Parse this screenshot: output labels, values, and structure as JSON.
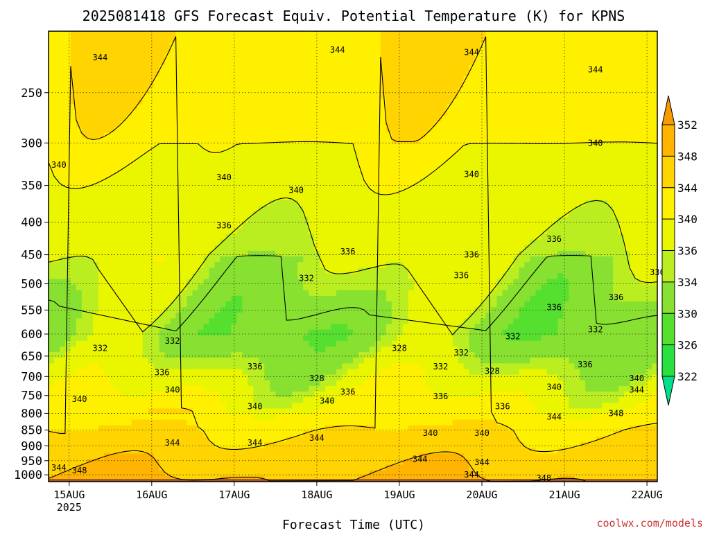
{
  "chart_data": {
    "type": "heatmap",
    "title": "2025081418 GFS Forecast Equiv. Potential Temperature (K) for KPNS",
    "xlabel": "Forecast Time (UTC)",
    "ylabel": "",
    "y_scale": "log",
    "y_inverted": true,
    "y_ticks": [
      250,
      300,
      350,
      400,
      450,
      500,
      550,
      600,
      650,
      700,
      750,
      800,
      850,
      900,
      950,
      1000
    ],
    "y_range": [
      1025,
      200
    ],
    "x_ticks": [
      {
        "label": "15AUG",
        "sublabel": "2025",
        "time": "2025-08-15T00"
      },
      {
        "label": "16AUG",
        "time": "2025-08-16T00"
      },
      {
        "label": "17AUG",
        "time": "2025-08-17T00"
      },
      {
        "label": "18AUG",
        "time": "2025-08-18T00"
      },
      {
        "label": "19AUG",
        "time": "2025-08-19T00"
      },
      {
        "label": "20AUG",
        "time": "2025-08-20T00"
      },
      {
        "label": "21AUG",
        "time": "2025-08-21T00"
      },
      {
        "label": "22AUG",
        "time": "2025-08-22T00"
      }
    ],
    "x_range": [
      "2025-08-14T18",
      "2025-08-22T03"
    ],
    "grid": true,
    "colorbar": {
      "placement": "right",
      "levels": [
        322,
        326,
        330,
        334,
        336,
        340,
        344,
        348,
        352
      ],
      "colors": [
        "#00e08a",
        "#28e040",
        "#55e030",
        "#88e030",
        "#bbee20",
        "#eaf500",
        "#fff000",
        "#ffd400",
        "#ffb400",
        "#f79a00"
      ]
    },
    "ground_color": "#a0522d",
    "contour_labels": [
      {
        "text": "344",
        "time": "2025-08-15T09",
        "p": 220
      },
      {
        "text": "344",
        "time": "2025-08-18T06",
        "p": 214
      },
      {
        "text": "344",
        "time": "2025-08-19T21",
        "p": 216
      },
      {
        "text": "344",
        "time": "2025-08-21T09",
        "p": 230
      },
      {
        "text": "340",
        "time": "2025-08-14T21",
        "p": 325
      },
      {
        "text": "340",
        "time": "2025-08-16T21",
        "p": 340
      },
      {
        "text": "340",
        "time": "2025-08-17T18",
        "p": 356
      },
      {
        "text": "340",
        "time": "2025-08-19T21",
        "p": 336
      },
      {
        "text": "340",
        "time": "2025-08-21T09",
        "p": 300
      },
      {
        "text": "336",
        "time": "2025-08-16T21",
        "p": 405
      },
      {
        "text": "336",
        "time": "2025-08-18T09",
        "p": 445
      },
      {
        "text": "336",
        "time": "2025-08-19T21",
        "p": 450
      },
      {
        "text": "336",
        "time": "2025-08-20T21",
        "p": 425
      },
      {
        "text": "336",
        "time": "2025-08-22T03",
        "p": 480
      },
      {
        "text": "336",
        "time": "2025-08-19T18",
        "p": 485
      },
      {
        "text": "336",
        "time": "2025-08-21T15",
        "p": 525
      },
      {
        "text": "336",
        "time": "2025-08-20T21",
        "p": 545
      },
      {
        "text": "332",
        "time": "2025-08-17T21",
        "p": 490
      },
      {
        "text": "332",
        "time": "2025-08-15T09",
        "p": 632
      },
      {
        "text": "332",
        "time": "2025-08-16T06",
        "p": 615
      },
      {
        "text": "332",
        "time": "2025-08-20T09",
        "p": 605
      },
      {
        "text": "332",
        "time": "2025-08-21T09",
        "p": 590
      },
      {
        "text": "332",
        "time": "2025-08-19T18",
        "p": 642
      },
      {
        "text": "332",
        "time": "2025-08-19T12",
        "p": 675
      },
      {
        "text": "328",
        "time": "2025-08-19T00",
        "p": 632
      },
      {
        "text": "328",
        "time": "2025-08-20T03",
        "p": 686
      },
      {
        "text": "328",
        "time": "2025-08-18T00",
        "p": 705
      },
      {
        "text": "336",
        "time": "2025-08-16T03",
        "p": 690
      },
      {
        "text": "336",
        "time": "2025-08-17T06",
        "p": 675
      },
      {
        "text": "336",
        "time": "2025-08-18T09",
        "p": 740
      },
      {
        "text": "336",
        "time": "2025-08-19T12",
        "p": 752
      },
      {
        "text": "336",
        "time": "2025-08-20T06",
        "p": 780
      },
      {
        "text": "336",
        "time": "2025-08-21T06",
        "p": 670
      },
      {
        "text": "340",
        "time": "2025-08-15T03",
        "p": 760
      },
      {
        "text": "340",
        "time": "2025-08-16T06",
        "p": 735
      },
      {
        "text": "340",
        "time": "2025-08-17T06",
        "p": 780
      },
      {
        "text": "340",
        "time": "2025-08-18T03",
        "p": 765
      },
      {
        "text": "340",
        "time": "2025-08-19T09",
        "p": 860
      },
      {
        "text": "340",
        "time": "2025-08-20T00",
        "p": 860
      },
      {
        "text": "340",
        "time": "2025-08-20T21",
        "p": 727
      },
      {
        "text": "340",
        "time": "2025-08-21T21",
        "p": 705
      },
      {
        "text": "344",
        "time": "2025-08-21T21",
        "p": 735
      },
      {
        "text": "344",
        "time": "2025-08-16T06",
        "p": 890
      },
      {
        "text": "344",
        "time": "2025-08-17T06",
        "p": 890
      },
      {
        "text": "344",
        "time": "2025-08-18T00",
        "p": 875
      },
      {
        "text": "344",
        "time": "2025-08-19T06",
        "p": 945
      },
      {
        "text": "344",
        "time": "2025-08-20T00",
        "p": 955
      },
      {
        "text": "344",
        "time": "2025-08-20T21",
        "p": 810
      },
      {
        "text": "344",
        "time": "2025-08-14T21",
        "p": 975
      },
      {
        "text": "348",
        "time": "2025-08-15T03",
        "p": 985
      },
      {
        "text": "348",
        "time": "2025-08-21T15",
        "p": 800
      },
      {
        "text": "348",
        "time": "2025-08-20T18",
        "p": 1012
      },
      {
        "text": "344",
        "time": "2025-08-19T21",
        "p": 1000
      }
    ]
  },
  "credit": "coolwx.com/models"
}
